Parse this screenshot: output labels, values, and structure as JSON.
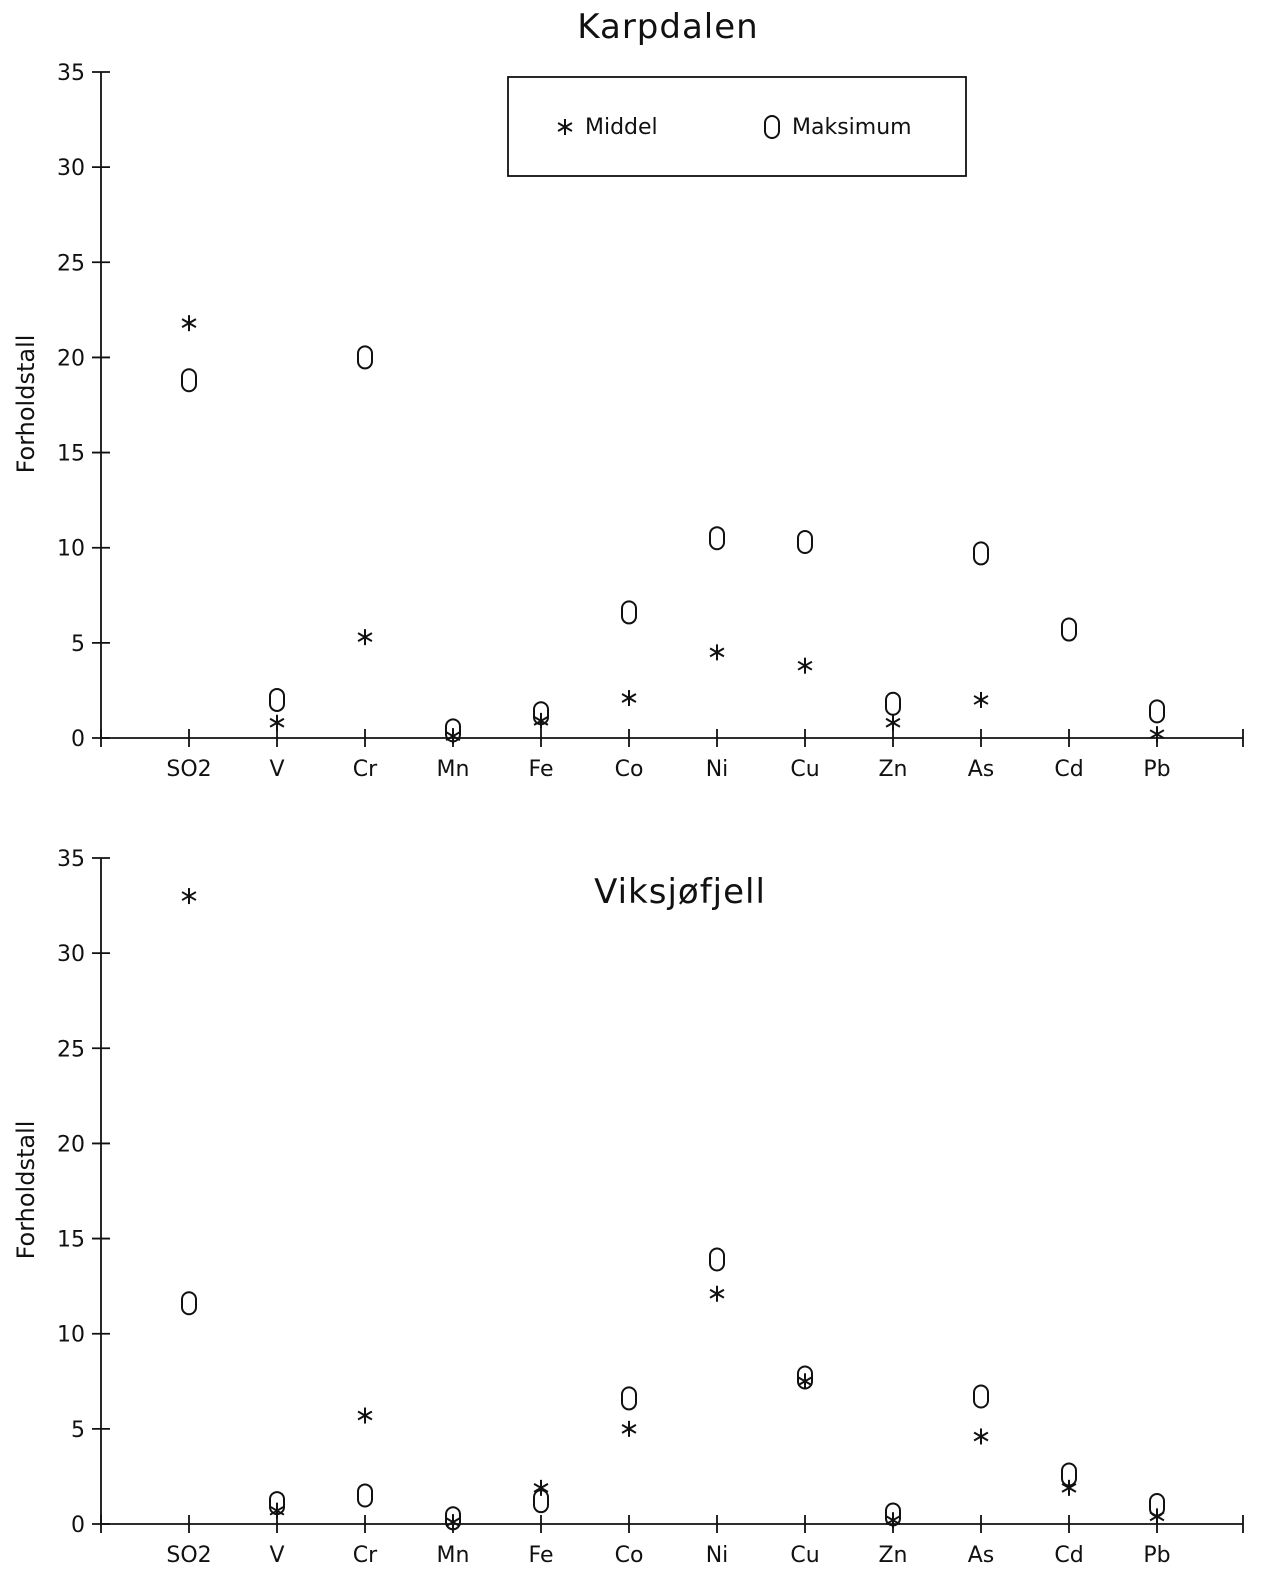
{
  "legend": {
    "mean_label": "Middel",
    "max_label": "Maksimum"
  },
  "chart_data": [
    {
      "type": "scatter",
      "title": "Karpdalen",
      "xlabel": "",
      "ylabel": "Forholdstall",
      "ylim": [
        0,
        35
      ],
      "yticks": [
        0,
        5,
        10,
        15,
        20,
        25,
        30,
        35
      ],
      "categories": [
        "SO2",
        "V",
        "Cr",
        "Mn",
        "Fe",
        "Co",
        "Ni",
        "Cu",
        "Zn",
        "As",
        "Cd",
        "Pb"
      ],
      "series": [
        {
          "name": "Middel",
          "marker": "star",
          "values": [
            21.8,
            0.8,
            5.3,
            0.1,
            0.9,
            2.1,
            4.5,
            3.8,
            0.8,
            2.0,
            null,
            0.2
          ]
        },
        {
          "name": "Maksimum",
          "marker": "O",
          "values": [
            18.8,
            2.0,
            20.0,
            0.4,
            1.3,
            6.6,
            10.5,
            10.3,
            1.8,
            9.7,
            5.7,
            1.4
          ]
        }
      ],
      "legend_position": "top-center"
    },
    {
      "type": "scatter",
      "title": "Viksjøfjell",
      "xlabel": "",
      "ylabel": "Forholdstall",
      "ylim": [
        0,
        35
      ],
      "yticks": [
        0,
        5,
        10,
        15,
        20,
        25,
        30,
        35
      ],
      "categories": [
        "SO2",
        "V",
        "Cr",
        "Mn",
        "Fe",
        "Co",
        "Ni",
        "Cu",
        "Zn",
        "As",
        "Cd",
        "Pb"
      ],
      "series": [
        {
          "name": "Middel",
          "marker": "star",
          "values": [
            33.0,
            0.7,
            5.7,
            0.1,
            1.9,
            5.0,
            12.1,
            7.5,
            0.2,
            4.6,
            1.9,
            0.4
          ]
        },
        {
          "name": "Maksimum",
          "marker": "O",
          "values": [
            11.6,
            1.1,
            1.5,
            0.3,
            1.2,
            6.6,
            13.9,
            7.7,
            0.5,
            6.7,
            2.6,
            1.0
          ]
        }
      ]
    }
  ]
}
